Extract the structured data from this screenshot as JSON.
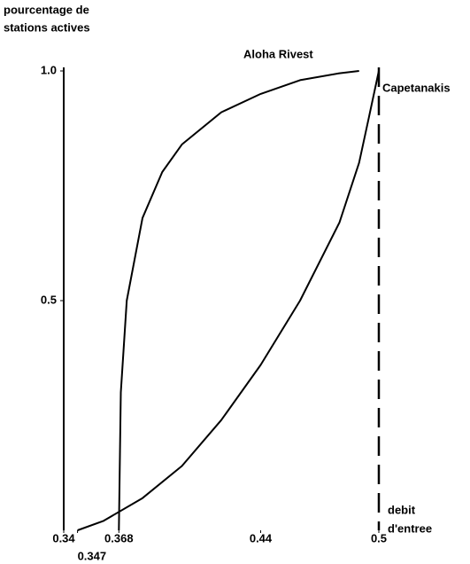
{
  "chart_data": {
    "type": "line",
    "y_label": [
      "pourcentage de",
      "stations actives"
    ],
    "x_label": [
      "debit",
      "d'entree"
    ],
    "xlim": [
      0.34,
      0.5
    ],
    "ylim": [
      0,
      1
    ],
    "xticks": [
      0.34,
      0.347,
      0.368,
      0.44,
      0.5
    ],
    "yticks": [
      0.5,
      {
        "value": 1,
        "label": "1.0"
      }
    ],
    "series": [
      {
        "name": "Aloha Rivest",
        "color": "#000000",
        "x": [
          0.368,
          0.369,
          0.372,
          0.38,
          0.39,
          0.4,
          0.42,
          0.44,
          0.46,
          0.48,
          0.49
        ],
        "values": [
          0,
          0.3,
          0.5,
          0.68,
          0.78,
          0.84,
          0.91,
          0.95,
          0.98,
          0.995,
          1.0
        ]
      },
      {
        "name": "Capetanakis",
        "color": "#000000",
        "x": [
          0.347,
          0.36,
          0.38,
          0.4,
          0.42,
          0.44,
          0.46,
          0.48,
          0.49,
          0.495,
          0.5
        ],
        "values": [
          0,
          0.02,
          0.07,
          0.14,
          0.24,
          0.36,
          0.5,
          0.67,
          0.8,
          0.9,
          1.0
        ]
      }
    ]
  }
}
